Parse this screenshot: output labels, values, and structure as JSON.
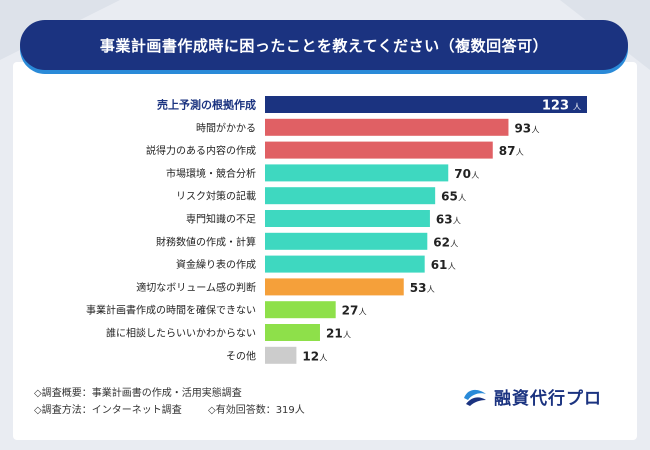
{
  "title": "事業計画書作成時に困ったことを教えてください（複数回答可）",
  "footnotes": {
    "survey_overview": "◇調査概要：事業計画書の作成・活用実態調査",
    "survey_method": "◇調査方法：インターネット調査",
    "respondents": "◇有効回答数：319人"
  },
  "logo": {
    "text": "融資代行プロ",
    "icon": "logo-mark-icon"
  },
  "colors": {
    "navy": "#1b3380",
    "red": "#e06064",
    "teal": "#3ed8c0",
    "orange": "#f5a03a",
    "lime": "#8ee04a",
    "gray": "#cccccc"
  },
  "chart_data": {
    "type": "bar",
    "orientation": "horizontal",
    "unit": "人",
    "categories": [
      "売上予測の根拠作成",
      "時間がかかる",
      "説得力のある内容の作成",
      "市場環境・競合分析",
      "リスク対策の記載",
      "専門知識の不足",
      "財務数値の作成・計算",
      "資金繰り表の作成",
      "適切なボリューム感の判断",
      "事業計画書作成の時間を確保できない",
      "誰に相談したらいいかわからない",
      "その他"
    ],
    "values": [
      123,
      93,
      87,
      70,
      65,
      63,
      62,
      61,
      53,
      27,
      21,
      12
    ],
    "bar_colors": [
      "navy",
      "red",
      "red",
      "teal",
      "teal",
      "teal",
      "teal",
      "teal",
      "orange",
      "lime",
      "lime",
      "gray"
    ],
    "highlight_index": 0
  }
}
